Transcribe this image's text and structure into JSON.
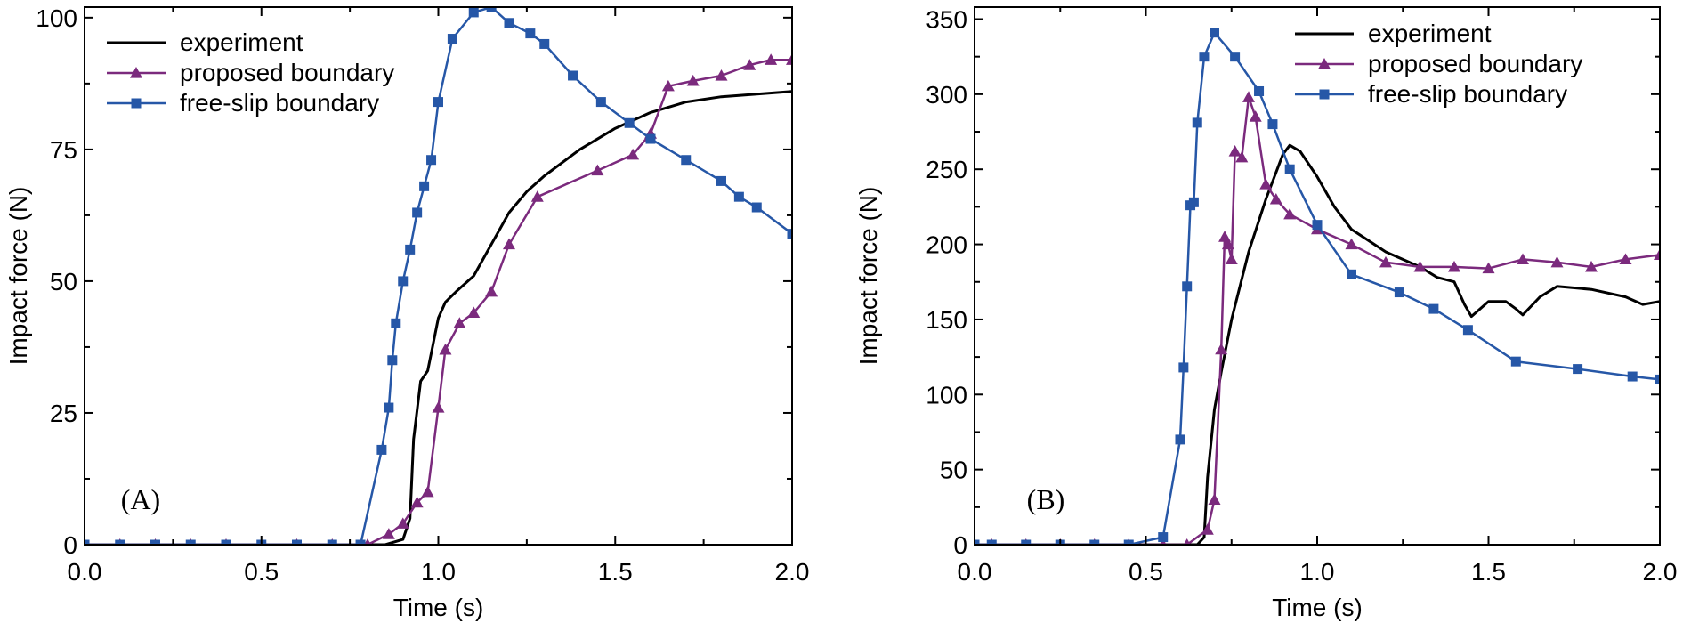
{
  "chart_data": [
    {
      "type": "line",
      "panel_label": "(A)",
      "xlabel": "Time (s)",
      "ylabel": "Impact force (N)",
      "xlim": [
        0,
        2.0
      ],
      "ylim": [
        0,
        102
      ],
      "xticks": [
        0.0,
        0.5,
        1.0,
        1.5,
        2.0
      ],
      "xtick_labels": [
        "0.0",
        "0.5",
        "1.0",
        "1.5",
        "2.0"
      ],
      "yticks": [
        0,
        25,
        50,
        75,
        100
      ],
      "ytick_labels": [
        "0",
        "25",
        "50",
        "75",
        "100"
      ],
      "legend_position": "top-right",
      "series": [
        {
          "name": "experiment",
          "color": "#000000",
          "marker": "none",
          "x": [
            0,
            0.3,
            0.6,
            0.85,
            0.9,
            0.92,
            0.93,
            0.95,
            0.96,
            0.97,
            1.0,
            1.02,
            1.05,
            1.1,
            1.15,
            1.2,
            1.25,
            1.3,
            1.4,
            1.5,
            1.6,
            1.7,
            1.8,
            1.9,
            2.0
          ],
          "y": [
            0,
            0,
            0,
            0,
            1,
            5,
            20,
            31,
            32,
            33,
            43,
            46,
            48,
            51,
            57,
            63,
            67,
            70,
            75,
            79,
            82,
            84,
            85,
            85.5,
            86
          ]
        },
        {
          "name": "proposed boundary",
          "color": "#7b2a7d",
          "marker": "triangle",
          "x": [
            0.0,
            0.1,
            0.2,
            0.3,
            0.4,
            0.5,
            0.6,
            0.7,
            0.8,
            0.86,
            0.9,
            0.94,
            0.97,
            1.0,
            1.02,
            1.06,
            1.1,
            1.15,
            1.2,
            1.28,
            1.45,
            1.55,
            1.6,
            1.65,
            1.72,
            1.8,
            1.88,
            1.94,
            2.0
          ],
          "y": [
            0,
            0,
            0,
            0,
            0,
            0,
            0,
            0,
            0,
            2,
            4,
            8,
            10,
            26,
            37,
            42,
            44,
            48,
            57,
            66,
            71,
            74,
            78,
            87,
            88,
            89,
            91,
            92,
            92
          ]
        },
        {
          "name": "free-slip boundary",
          "color": "#2657a7",
          "marker": "square",
          "x": [
            0.0,
            0.1,
            0.2,
            0.3,
            0.4,
            0.5,
            0.6,
            0.7,
            0.78,
            0.84,
            0.86,
            0.87,
            0.88,
            0.9,
            0.92,
            0.94,
            0.96,
            0.98,
            1.0,
            1.04,
            1.1,
            1.15,
            1.2,
            1.26,
            1.3,
            1.38,
            1.46,
            1.54,
            1.6,
            1.7,
            1.8,
            1.85,
            1.9,
            2.0
          ],
          "y": [
            0,
            0,
            0,
            0,
            0,
            0,
            0,
            0,
            0,
            18,
            26,
            35,
            42,
            50,
            56,
            63,
            68,
            73,
            84,
            96,
            101,
            102,
            99,
            97,
            95,
            89,
            84,
            80,
            77,
            73,
            69,
            66,
            64,
            59
          ]
        }
      ]
    },
    {
      "type": "line",
      "panel_label": "(B)",
      "xlabel": "Time (s)",
      "ylabel": "Impact force (N)",
      "xlim": [
        0,
        2.0
      ],
      "ylim": [
        0,
        358
      ],
      "xticks": [
        0.0,
        0.5,
        1.0,
        1.5,
        2.0
      ],
      "xtick_labels": [
        "0.0",
        "0.5",
        "1.0",
        "1.5",
        "2.0"
      ],
      "yticks": [
        0,
        50,
        100,
        150,
        200,
        250,
        300,
        350
      ],
      "ytick_labels": [
        "0",
        "50",
        "100",
        "150",
        "200",
        "250",
        "300",
        "350"
      ],
      "legend_position": "top-right",
      "series": [
        {
          "name": "experiment",
          "color": "#000000",
          "marker": "none",
          "x": [
            0,
            0.3,
            0.6,
            0.65,
            0.67,
            0.68,
            0.7,
            0.72,
            0.75,
            0.8,
            0.85,
            0.9,
            0.92,
            0.95,
            1.0,
            1.05,
            1.1,
            1.2,
            1.3,
            1.35,
            1.4,
            1.43,
            1.45,
            1.5,
            1.55,
            1.58,
            1.6,
            1.65,
            1.7,
            1.8,
            1.9,
            1.95,
            2.0
          ],
          "y": [
            0,
            0,
            0,
            0,
            5,
            45,
            90,
            115,
            150,
            195,
            230,
            260,
            266,
            262,
            245,
            225,
            210,
            195,
            185,
            178,
            175,
            160,
            152,
            162,
            162,
            157,
            153,
            165,
            172,
            170,
            165,
            160,
            162
          ]
        },
        {
          "name": "proposed boundary",
          "color": "#7b2a7d",
          "marker": "triangle",
          "x": [
            0.0,
            0.05,
            0.15,
            0.25,
            0.35,
            0.45,
            0.55,
            0.62,
            0.68,
            0.7,
            0.72,
            0.73,
            0.74,
            0.75,
            0.76,
            0.78,
            0.8,
            0.82,
            0.85,
            0.88,
            0.92,
            1.0,
            1.1,
            1.2,
            1.3,
            1.4,
            1.5,
            1.6,
            1.7,
            1.8,
            1.9,
            2.0
          ],
          "y": [
            0,
            0,
            0,
            0,
            0,
            0,
            0,
            0,
            10,
            30,
            130,
            205,
            200,
            190,
            262,
            258,
            298,
            285,
            240,
            230,
            220,
            210,
            200,
            188,
            185,
            185,
            184,
            190,
            188,
            185,
            190,
            193
          ]
        },
        {
          "name": "free-slip boundary",
          "color": "#2657a7",
          "marker": "square",
          "x": [
            0.0,
            0.05,
            0.15,
            0.25,
            0.35,
            0.45,
            0.55,
            0.6,
            0.61,
            0.62,
            0.63,
            0.64,
            0.65,
            0.67,
            0.7,
            0.76,
            0.83,
            0.87,
            0.92,
            1.0,
            1.1,
            1.24,
            1.34,
            1.44,
            1.58,
            1.76,
            1.92,
            2.0
          ],
          "y": [
            0,
            0,
            0,
            0,
            0,
            0,
            5,
            70,
            118,
            172,
            226,
            228,
            281,
            325,
            341,
            325,
            302,
            280,
            250,
            213,
            180,
            168,
            157,
            143,
            122,
            117,
            112,
            110
          ]
        }
      ]
    }
  ]
}
